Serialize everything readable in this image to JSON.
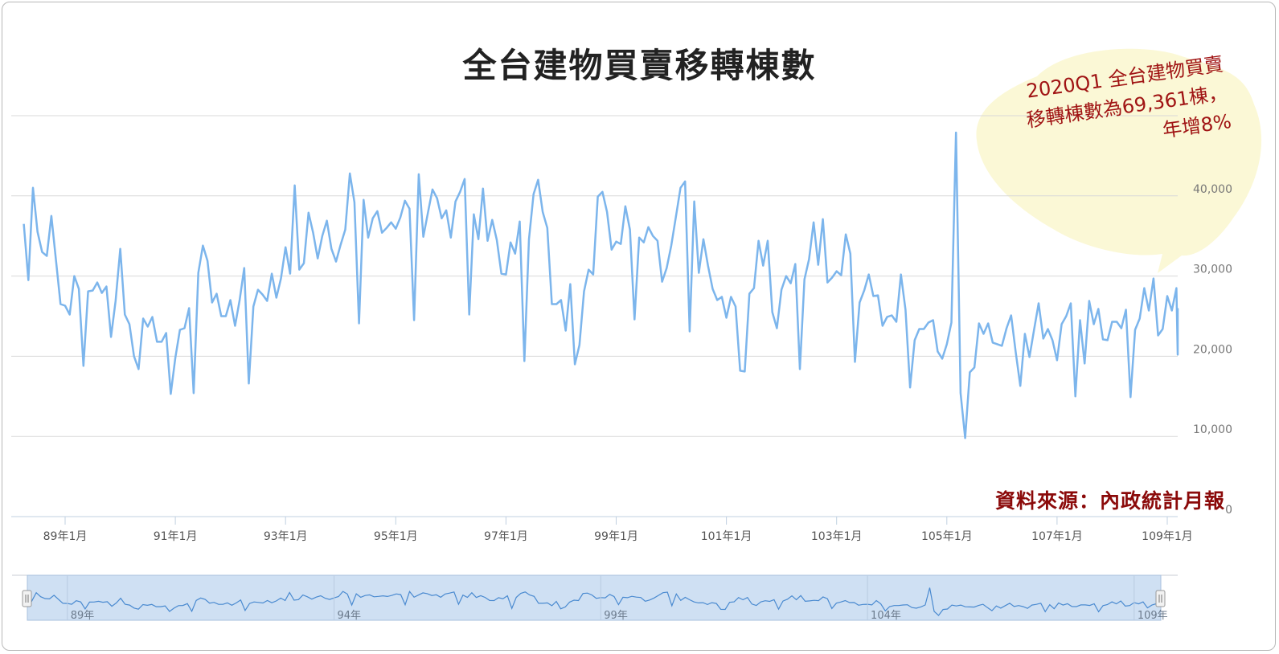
{
  "title": "全台建物買賣移轉棟數",
  "source": "資料來源：內政統計月報",
  "annotation": {
    "lines": [
      "2020Q1 全台建物買賣",
      "移轉棟數為69,361棟，",
      "年增8%"
    ],
    "fill": "#fbf8d6"
  },
  "navigator": {
    "ticks": [
      "89年",
      "94年",
      "99年",
      "104年",
      "109年"
    ]
  },
  "chart_data": {
    "type": "line",
    "series_color": "#7cb5ec",
    "x_tick_labels": [
      "89年1月",
      "91年1月",
      "93年1月",
      "95年1月",
      "97年1月",
      "99年1月",
      "101年1月",
      "103年1月",
      "105年1月",
      "107年1月",
      "109年1月"
    ],
    "y_tick_labels": [
      "0",
      "10,000",
      "20,000",
      "30,000",
      "40,000"
    ],
    "ylim": [
      0,
      50000
    ],
    "grid": true,
    "x_start": "民國88年4月",
    "series": [
      {
        "values": [
          36500,
          29500,
          41000,
          35500,
          33000,
          32500,
          37500,
          32000,
          26500,
          26300,
          25200,
          30000,
          28400,
          18800,
          28100,
          28200,
          29200,
          27900,
          28700,
          22400,
          26900,
          33400,
          25200,
          24000,
          20000,
          18400,
          24700,
          23700,
          24900,
          21800,
          21800,
          22900,
          15300,
          19800,
          23300,
          23500,
          26000,
          15400,
          30400,
          33800,
          31900,
          26700,
          27800,
          25000,
          25000,
          27000,
          23800,
          27000,
          31000,
          16600,
          26200,
          28300,
          27700,
          26900,
          30300,
          27300,
          29700,
          33600,
          30300,
          41300,
          30800,
          31600,
          37900,
          35400,
          32200,
          35000,
          36900,
          33400,
          31800,
          33900,
          35800,
          42800,
          39200,
          24100,
          39500,
          34800,
          37200,
          38100,
          35400,
          36000,
          36700,
          35900,
          37300,
          39400,
          38400,
          24500,
          42700,
          34900,
          37900,
          40800,
          39700,
          37200,
          38200,
          34800,
          39300,
          40500,
          42100,
          25200,
          37700,
          34600,
          40900,
          34400,
          37000,
          34500,
          30300,
          30200,
          34200,
          32800,
          36800,
          19400,
          34600,
          40200,
          42000,
          38000,
          36000,
          26500,
          26500,
          27000,
          23200,
          29000,
          19000,
          21400,
          28100,
          30800,
          30200,
          39900,
          40500,
          38000,
          33300,
          34300,
          34000,
          38700,
          35800,
          24600,
          34800,
          34200,
          36100,
          35000,
          34400,
          29300,
          31000,
          33800,
          37400,
          41000,
          41800,
          23100,
          39300,
          30400,
          34600,
          31300,
          28400,
          27000,
          27400,
          24800,
          27400,
          26200,
          18200,
          18100,
          27800,
          28500,
          34400,
          31300,
          34400,
          25500,
          23500,
          28300,
          30000,
          29100,
          31500,
          18400,
          29600,
          32100,
          36700,
          31400,
          37100,
          29200,
          29800,
          30600,
          30100,
          35200,
          32800,
          19300,
          26700,
          28200,
          30200,
          27500,
          27600,
          23800,
          24900,
          25100,
          24300,
          30200,
          25800,
          16100,
          22000,
          23400,
          23400,
          24200,
          24500,
          20600,
          19700,
          21500,
          24200,
          47900,
          15400,
          9800,
          18000,
          18600,
          24100,
          22800,
          24100,
          21700,
          21500,
          21300,
          23500,
          25100,
          20500,
          16300,
          22800,
          19900,
          23300,
          26600,
          22200,
          23400,
          22000,
          19500,
          24000,
          25000,
          26600,
          15000,
          24500,
          19100,
          26900,
          24000,
          25900,
          22100,
          22000,
          24300,
          24300,
          23500,
          25800,
          14900,
          23300,
          24700,
          28500,
          25700,
          29700,
          22600,
          23400,
          27500,
          25700,
          28500,
          20200,
          24000,
          25900,
          22800
        ]
      }
    ]
  }
}
